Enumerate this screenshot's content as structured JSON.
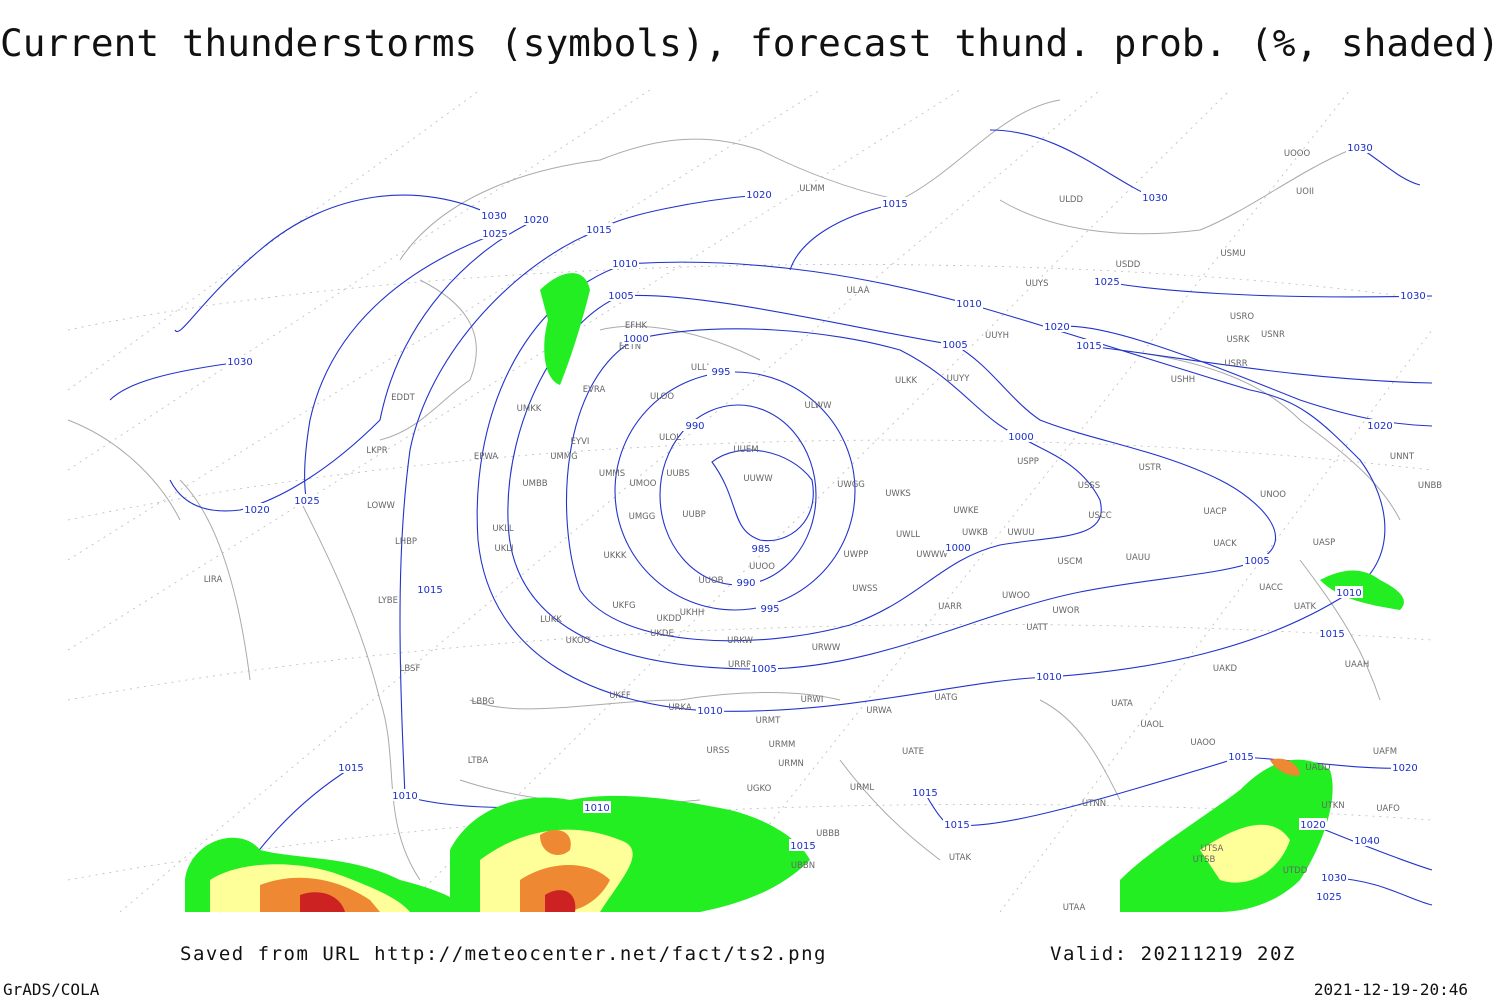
{
  "title": "Current thunderstorms (symbols), forecast thund. prob. (%, shaded)",
  "footer": {
    "source": "Saved from URL http://meteocenter.net/fact/ts2.png",
    "valid": "Valid: 20211219 20Z",
    "software": "GrADS/COLA",
    "timestamp": "2021-12-19-20:46"
  },
  "isobar_labels": [
    1030,
    1025,
    1020,
    1015,
    1010,
    1005,
    1000,
    995,
    990,
    985,
    990,
    995,
    1005,
    1010,
    1020,
    1015,
    1010,
    1005,
    1000,
    1000,
    1030,
    1025,
    1020,
    1015,
    1030,
    1030,
    1020,
    1005,
    1010,
    1015,
    1010,
    1030,
    1025,
    1020,
    1015,
    1015,
    1010,
    1010,
    1015,
    1015,
    1015,
    1015,
    1020,
    1020,
    1040,
    1030,
    1025
  ],
  "stations": [
    "UOOO",
    "UOII",
    "ULDD",
    "ULMM",
    "USDD",
    "USMU",
    "ULAA",
    "UUYS",
    "USRO",
    "USRK",
    "USNR",
    "USRR",
    "USHH",
    "EFHK",
    "EETN",
    "ULLI",
    "ULKK",
    "UUYY",
    "UUYH",
    "EVRA",
    "ULOO",
    "ULWW",
    "UMKK",
    "EDDT",
    "EYVI",
    "ULOL",
    "UUEM",
    "EPWA",
    "UMMG",
    "UMMS",
    "UMOO",
    "UUBS",
    "UUWW",
    "UWGG",
    "UWKS",
    "USPP",
    "USTR",
    "USSS",
    "UNOO",
    "UNNT",
    "UNBB",
    "LKPR",
    "UMBB",
    "LOWW",
    "UMGG",
    "UUBP",
    "UWKE",
    "UWKB",
    "UWUU",
    "USCC",
    "UACP",
    "UKLL",
    "UKLI",
    "LHBP",
    "UWLL",
    "UWWW",
    "UWPP",
    "UKKK",
    "USCM",
    "UAUU",
    "UACK",
    "UASP",
    "LIRA",
    "UUOO",
    "UUOB",
    "UACC",
    "UATK",
    "LYBE",
    "UWSS",
    "UARR",
    "UWOO",
    "UWOR",
    "UKFG",
    "UKDD",
    "UKHH",
    "UKDE",
    "LUKK",
    "UKOO",
    "URKW",
    "URWW",
    "UATT",
    "URRR",
    "UAKD",
    "UAAH",
    "LBSF",
    "UKFF",
    "URKA",
    "URWI",
    "UATG",
    "LBBG",
    "URMT",
    "URWA",
    "UATA",
    "UAOL",
    "UAOO",
    "UAFM",
    "URSS",
    "URMM",
    "URMN",
    "UATE",
    "LTBA",
    "UADD",
    "URML",
    "UTNN",
    "UGKO",
    "UAFO",
    "UTKN",
    "UBBB",
    "UBBN",
    "UTAK",
    "UTSA",
    "UTSB",
    "UTAA",
    "UTDD"
  ]
}
